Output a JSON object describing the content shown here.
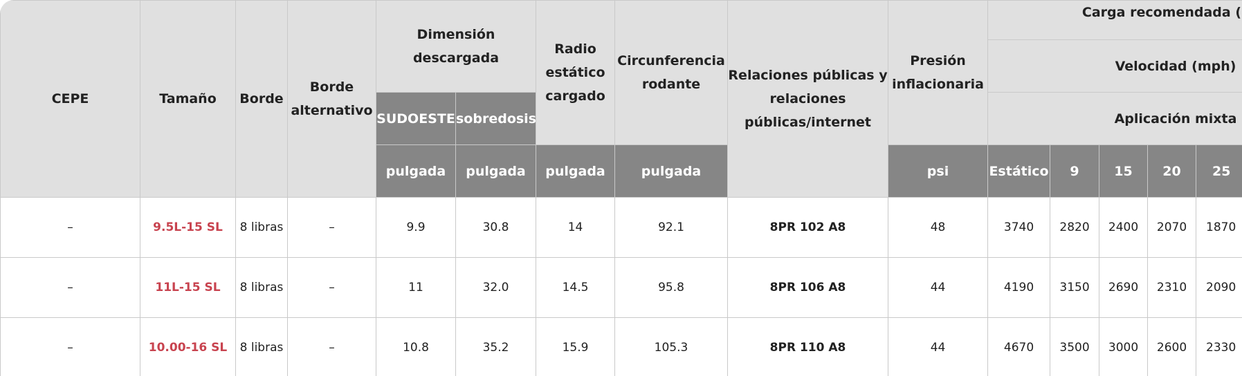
{
  "table": {
    "headers": {
      "cepe": "CEPE",
      "size": "Tamaño",
      "rim": "Borde",
      "alt_rim": "Borde alternativo",
      "unloaded_dim": "Dimensión descargada",
      "sw": "SUDOESTE",
      "od": "sobredosis",
      "static_radius": "Radio estático cargado",
      "rolling_circ": "Circunferencia rodante",
      "pr": "Relaciones públicas y relaciones públicas/internet",
      "pressure": "Presión inflacionaria",
      "load": "Carga recomendada (lbs)",
      "speed": "Velocidad (mph)",
      "mixed": "Aplicación mixta",
      "unit_in": "pulgada",
      "unit_psi": "psi",
      "static": "Estático",
      "speeds": [
        "9",
        "15",
        "20",
        "25"
      ]
    },
    "rows": [
      {
        "cepe": "–",
        "size": "9.5L-15 SL",
        "rim": "8 libras",
        "alt_rim": "–",
        "sw": "9.9",
        "od": "30.8",
        "radius": "14",
        "circ": "92.1",
        "pr": "8PR 102 A8",
        "psi": "48",
        "static": "3740",
        "v9": "2820",
        "v15": "2400",
        "v20": "2070",
        "v25": "1870"
      },
      {
        "cepe": "–",
        "size": "11L-15 SL",
        "rim": "8 libras",
        "alt_rim": "–",
        "sw": "11",
        "od": "32.0",
        "radius": "14.5",
        "circ": "95.8",
        "pr": "8PR 106 A8",
        "psi": "44",
        "static": "4190",
        "v9": "3150",
        "v15": "2690",
        "v20": "2310",
        "v25": "2090"
      },
      {
        "cepe": "–",
        "size": "10.00-16 SL",
        "rim": "8 libras",
        "alt_rim": "–",
        "sw": "10.8",
        "od": "35.2",
        "radius": "15.9",
        "circ": "105.3",
        "pr": "8PR 110 A8",
        "psi": "44",
        "static": "4670",
        "v9": "3500",
        "v15": "3000",
        "v20": "2600",
        "v25": "2330"
      }
    ]
  }
}
